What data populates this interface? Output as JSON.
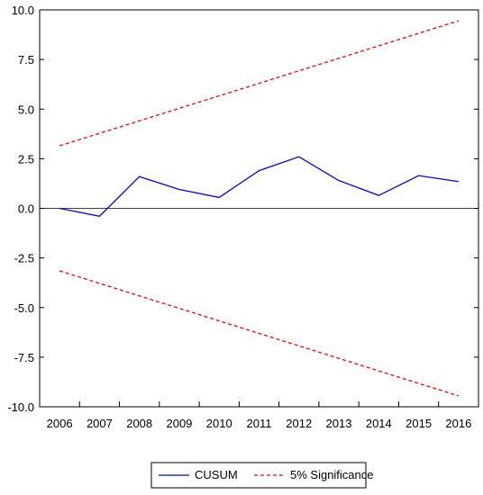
{
  "chart_data": {
    "type": "line",
    "categories": [
      "2006",
      "2007",
      "2008",
      "2009",
      "2010",
      "2011",
      "2012",
      "2013",
      "2014",
      "2015",
      "2016"
    ],
    "ylim": [
      -10.0,
      10.0
    ],
    "yticks": [
      "10.0",
      "7.5",
      "5.0",
      "2.5",
      "0.0",
      "-2.5",
      "-5.0",
      "-7.5",
      "-10.0"
    ],
    "yticks_values": [
      10.0,
      7.5,
      5.0,
      2.5,
      0.0,
      -2.5,
      -5.0,
      -7.5,
      -10.0
    ],
    "zero_line": true,
    "grid": false,
    "legend_position": "bottom",
    "series": [
      {
        "name": "CUSUM",
        "color": "#0000ff",
        "style": "solid",
        "values": [
          0.0,
          -0.4,
          1.6,
          0.95,
          0.55,
          1.9,
          2.6,
          1.4,
          0.65,
          1.65,
          1.35
        ]
      },
      {
        "name": "5% Significance",
        "color": "#ff0000",
        "style": "dashed",
        "values": [
          3.15,
          3.78,
          4.41,
          5.04,
          5.67,
          6.3,
          6.93,
          7.56,
          8.19,
          8.82,
          9.45
        ]
      },
      {
        "name": "5% Significance",
        "color": "#ff0000",
        "style": "dashed",
        "hide_legend": true,
        "values": [
          -3.15,
          -3.78,
          -4.41,
          -5.04,
          -5.67,
          -6.3,
          -6.93,
          -7.56,
          -8.19,
          -8.82,
          -9.45
        ]
      }
    ]
  },
  "legend": {
    "items": [
      {
        "label": "CUSUM",
        "color": "#0000ff",
        "style": "solid"
      },
      {
        "label": "5% Significance",
        "color": "#ff0000",
        "style": "dashed"
      }
    ]
  }
}
